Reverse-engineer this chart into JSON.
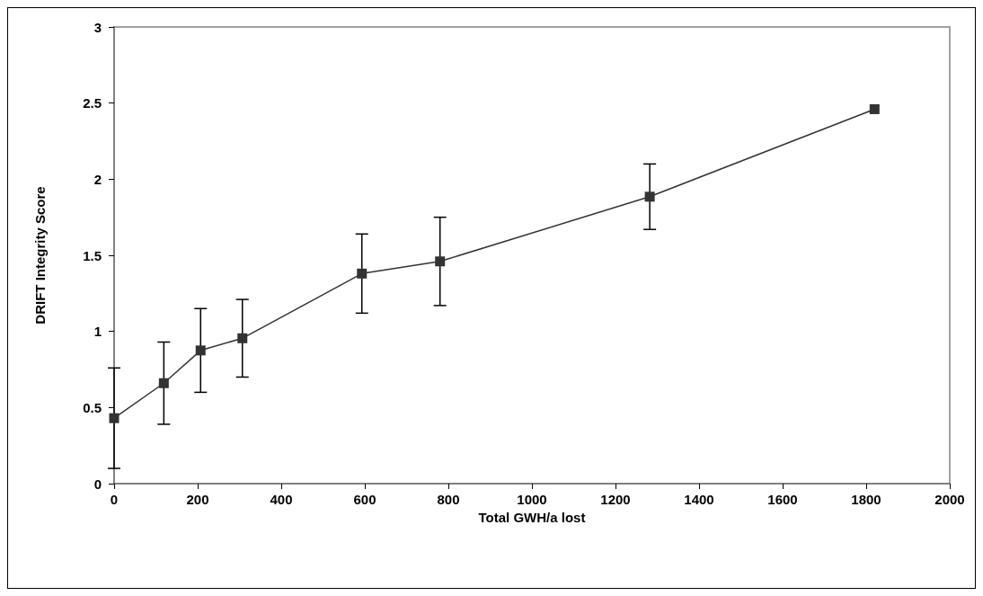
{
  "chart_data": {
    "type": "line",
    "xlabel": "Total GWH/a lost",
    "ylabel": "DRIFT Integrity Score",
    "x": [
      0,
      119,
      207,
      307,
      593,
      780,
      1282,
      1820
    ],
    "series": [
      {
        "color": "#333333",
        "values": [
          0.43,
          0.66,
          0.875,
          0.955,
          1.38,
          1.46,
          1.885,
          2.46
        ],
        "errors": [
          0.33,
          0.27,
          0.275,
          0.255,
          0.26,
          0.29,
          0.215,
          null
        ]
      }
    ],
    "xlim": [
      0,
      2000
    ],
    "xticks": [
      0,
      200,
      400,
      600,
      800,
      1000,
      1200,
      1400,
      1600,
      1800,
      2000
    ],
    "ylim": [
      0,
      3
    ],
    "yticks": [
      0,
      0.5,
      1,
      1.5,
      2,
      2.5,
      3
    ],
    "grid": false,
    "marker": "square",
    "line_style": "solid"
  }
}
